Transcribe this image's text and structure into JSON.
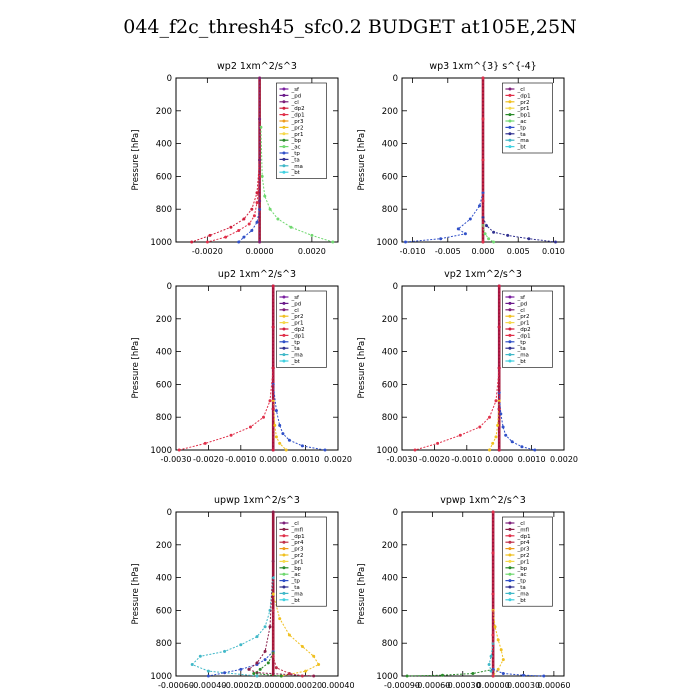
{
  "title": "044_f2c_thresh45_sfc0.2  BUDGET at105E,25N",
  "colors": {
    "sf": "#7a1fa0",
    "pd": "#6a1a8a",
    "cl": "#7d1f7a",
    "dp2": "#d01f3c",
    "dp1": "#e0304a",
    "pr3": "#ee9a1a",
    "pr2": "#f0c020",
    "pr1": "#f5d84a",
    "bp": "#2a8a2a",
    "bp1": "#2a8a2a",
    "ac": "#70d870",
    "tp": "#3050c8",
    "ta": "#303090",
    "ma": "#40b8c8",
    "bt": "#40d0e0",
    "mfl": "#8a1f4a",
    "pr4": "#c0304a"
  },
  "chart_data": [
    {
      "type": "line",
      "title": "wp2   1xm^2/s^3",
      "ylabel": "Pressure  [hPa]",
      "ylim": [
        1000,
        0
      ],
      "yticks": [
        "0",
        "200",
        "400",
        "600",
        "800",
        "1000"
      ],
      "xlim": [
        -0.0032,
        0.003
      ],
      "xticks": [
        {
          "v": -0.002,
          "label": "-0.0020"
        },
        {
          "v": 0,
          "label": "0.0000"
        },
        {
          "v": 0.002,
          "label": "0.0020"
        }
      ],
      "legend": [
        "_sf",
        "_pd",
        "_cl",
        "_dp2",
        "_dp1",
        "_pr3",
        "_pr2",
        "_pr1",
        "_bp",
        "_ac",
        "_tp",
        "_ta",
        "_ma",
        "_bt"
      ],
      "series": [
        {
          "name": "_ac",
          "x": [
            5e-05,
            0.0001,
            0.0002,
            0.0004,
            0.0007,
            0.0012,
            0.002,
            0.0028
          ],
          "y": [
            300,
            600,
            720,
            800,
            860,
            910,
            960,
            1000
          ]
        },
        {
          "name": "_dp2",
          "x": [
            0,
            -0.0001,
            -0.0003,
            -0.0006,
            -0.0011,
            -0.0019,
            -0.0026
          ],
          "y": [
            500,
            700,
            800,
            860,
            910,
            960,
            1000
          ]
        },
        {
          "name": "_dp1",
          "x": [
            0,
            -0.0001,
            -0.0002,
            -0.0004,
            -0.0008,
            -0.0013,
            -0.002
          ],
          "y": [
            600,
            760,
            840,
            890,
            930,
            970,
            1000
          ]
        },
        {
          "name": "_tp",
          "x": [
            0,
            -0.0001,
            -0.0003,
            -0.0006,
            -0.0008
          ],
          "y": [
            800,
            880,
            930,
            970,
            1000
          ]
        },
        {
          "name": "_pr3",
          "x": [
            0,
            0,
            0,
            0,
            0
          ],
          "y": [
            0,
            250,
            500,
            750,
            1000
          ]
        },
        {
          "name": "_cl",
          "x": [
            0,
            0,
            0,
            0,
            0
          ],
          "y": [
            0,
            250,
            500,
            750,
            1000
          ]
        }
      ]
    },
    {
      "type": "line",
      "title": "wp3   1xm^{3} s^{-4}",
      "ylabel": "Pressure  [hPa]",
      "ylim": [
        1000,
        0
      ],
      "yticks": [
        "0",
        "200",
        "400",
        "600",
        "800",
        "1000"
      ],
      "xlim": [
        -0.0115,
        0.0115
      ],
      "xticks": [
        {
          "v": -0.01,
          "label": "-0.010"
        },
        {
          "v": -0.005,
          "label": "-0.005"
        },
        {
          "v": 0,
          "label": "0.000"
        },
        {
          "v": 0.005,
          "label": "0.005"
        },
        {
          "v": 0.01,
          "label": "0.010"
        }
      ],
      "legend": [
        "_cl",
        "_dp1",
        "_pr2",
        "_pr1",
        "_bp1",
        "_ac",
        "_tp",
        "_ta",
        "_ma",
        "_bt"
      ],
      "series": [
        {
          "name": "_tp",
          "x": [
            0,
            -0.0005,
            -0.0018,
            -0.0035,
            -0.0025,
            -0.006,
            -0.011
          ],
          "y": [
            700,
            780,
            860,
            920,
            950,
            980,
            1000
          ]
        },
        {
          "name": "_ta",
          "x": [
            0,
            0.0005,
            0.0015,
            0.0035,
            0.0065,
            0.0103
          ],
          "y": [
            850,
            900,
            940,
            960,
            980,
            1000
          ]
        },
        {
          "name": "_ac",
          "x": [
            0,
            0.0003,
            0.0008,
            0.0015
          ],
          "y": [
            900,
            950,
            980,
            1000
          ]
        },
        {
          "name": "_pr2",
          "x": [
            0,
            0,
            0,
            0,
            0
          ],
          "y": [
            0,
            250,
            500,
            750,
            1000
          ]
        },
        {
          "name": "_cl",
          "x": [
            0,
            0,
            0,
            0,
            0
          ],
          "y": [
            0,
            250,
            500,
            750,
            1000
          ]
        },
        {
          "name": "_dp1",
          "x": [
            0,
            0,
            0,
            0,
            0
          ],
          "y": [
            0,
            250,
            500,
            750,
            1000
          ]
        }
      ]
    },
    {
      "type": "line",
      "title": "up2   1xm^2/s^3",
      "ylabel": "Pressure  [hPa]",
      "ylim": [
        1000,
        0
      ],
      "yticks": [
        "0",
        "200",
        "400",
        "600",
        "800",
        "1000"
      ],
      "xlim": [
        -0.003,
        0.002
      ],
      "xticks": [
        {
          "v": -0.003,
          "label": "-0.0030"
        },
        {
          "v": -0.002,
          "label": "-0.0020"
        },
        {
          "v": -0.001,
          "label": "-0.0010"
        },
        {
          "v": 0,
          "label": "0.0000"
        },
        {
          "v": 0.001,
          "label": "0.0010"
        },
        {
          "v": 0.002,
          "label": "0.0020"
        }
      ],
      "legend": [
        "_sf",
        "_pd",
        "_cl",
        "_pr2",
        "_pr1",
        "_dp2",
        "_dp1",
        "_tp",
        "_ta",
        "_ma",
        "_bt"
      ],
      "series": [
        {
          "name": "_dp1",
          "x": [
            0,
            -0.0001,
            -0.0003,
            -0.0007,
            -0.0013,
            -0.0021,
            -0.0029
          ],
          "y": [
            500,
            700,
            800,
            860,
            910,
            960,
            1000
          ]
        },
        {
          "name": "_tp",
          "x": [
            0,
            0.0001,
            0.0002,
            0.0003,
            0.0005,
            0.0009,
            0.0016
          ],
          "y": [
            600,
            760,
            850,
            900,
            940,
            975,
            1000
          ]
        },
        {
          "name": "_pr2",
          "x": [
            0,
            5e-05,
            0.0001,
            0.0002,
            0.0004
          ],
          "y": [
            700,
            850,
            920,
            960,
            1000
          ]
        },
        {
          "name": "_sf",
          "x": [
            0,
            0,
            0,
            0,
            0
          ],
          "y": [
            0,
            250,
            500,
            750,
            1000
          ]
        },
        {
          "name": "_cl",
          "x": [
            0,
            0,
            0,
            0,
            0
          ],
          "y": [
            0,
            250,
            500,
            750,
            1000
          ]
        },
        {
          "name": "_dp2",
          "x": [
            0,
            0,
            0,
            0,
            0
          ],
          "y": [
            0,
            250,
            500,
            750,
            1000
          ]
        }
      ]
    },
    {
      "type": "line",
      "title": "vp2   1xm^2/s^3",
      "ylabel": "Pressure  [hPa]",
      "ylim": [
        1000,
        0
      ],
      "yticks": [
        "0",
        "200",
        "400",
        "600",
        "800",
        "1000"
      ],
      "xlim": [
        -0.003,
        0.002
      ],
      "xticks": [
        {
          "v": -0.003,
          "label": "-0.0030"
        },
        {
          "v": -0.002,
          "label": "-0.0020"
        },
        {
          "v": -0.001,
          "label": "-0.0010"
        },
        {
          "v": 0,
          "label": "0.0000"
        },
        {
          "v": 0.001,
          "label": "0.0010"
        },
        {
          "v": 0.002,
          "label": "0.0020"
        }
      ],
      "legend": [
        "_sf",
        "_pd",
        "_cl",
        "_pr2",
        "_pr1",
        "_dp2",
        "_dp1",
        "_tp",
        "_ta",
        "_ma",
        "_bt"
      ],
      "series": [
        {
          "name": "_dp1",
          "x": [
            0,
            -0.0001,
            -0.0003,
            -0.0006,
            -0.0012,
            -0.0019,
            -0.0026
          ],
          "y": [
            500,
            700,
            800,
            860,
            910,
            960,
            1000
          ]
        },
        {
          "name": "_tp",
          "x": [
            0,
            5e-05,
            0.00012,
            0.0002,
            0.0004,
            0.0007,
            0.0011
          ],
          "y": [
            650,
            780,
            860,
            910,
            950,
            980,
            1000
          ]
        },
        {
          "name": "_pr2",
          "x": [
            0,
            -5e-05,
            -0.0001,
            -0.0002,
            -0.0003
          ],
          "y": [
            700,
            850,
            920,
            960,
            1000
          ]
        },
        {
          "name": "_sf",
          "x": [
            0,
            0,
            0,
            0,
            0
          ],
          "y": [
            0,
            250,
            500,
            750,
            1000
          ]
        },
        {
          "name": "_cl",
          "x": [
            0,
            0,
            0,
            0,
            0
          ],
          "y": [
            0,
            250,
            500,
            750,
            1000
          ]
        },
        {
          "name": "_dp2",
          "x": [
            0,
            0,
            0,
            0,
            0
          ],
          "y": [
            0,
            250,
            500,
            750,
            1000
          ]
        }
      ]
    },
    {
      "type": "line",
      "title": "upwp   1xm^2/s^3",
      "ylabel": "Pressure  [hPa]",
      "ylim": [
        1000,
        0
      ],
      "yticks": [
        "0",
        "200",
        "400",
        "600",
        "800",
        "1000"
      ],
      "xlim": [
        -0.0006,
        0.0004
      ],
      "xticks": [
        {
          "v": -0.0006,
          "label": "-0.00060"
        },
        {
          "v": -0.0004,
          "label": "-0.00040"
        },
        {
          "v": -0.0002,
          "label": "-0.00020"
        },
        {
          "v": 0,
          "label": "0.00000"
        },
        {
          "v": 0.0002,
          "label": "0.00020"
        },
        {
          "v": 0.0004,
          "label": "0.00040"
        }
      ],
      "legend": [
        "_cl",
        "_mfl",
        "_dp1",
        "_pr4",
        "_pr3",
        "_pr2",
        "_pr1",
        "_bp",
        "_ac",
        "_tp",
        "_ta",
        "_ma",
        "_bt"
      ],
      "series": [
        {
          "name": "_pr2",
          "x": [
            0,
            4e-05,
            0.0001,
            0.00018,
            0.00025,
            0.00028,
            0.0002,
            5e-05
          ],
          "y": [
            500,
            650,
            750,
            820,
            880,
            930,
            970,
            1000
          ]
        },
        {
          "name": "_ma",
          "x": [
            0,
            -2e-05,
            -5e-05,
            -0.0001,
            -0.0002,
            -0.0003,
            -0.00045,
            -0.0005,
            -0.0004,
            -0.0001
          ],
          "y": [
            400,
            600,
            700,
            760,
            810,
            850,
            880,
            930,
            970,
            1000
          ]
        },
        {
          "name": "_tp",
          "x": [
            0,
            -5e-05,
            -0.0001,
            -0.0002,
            -0.0003,
            -0.0004
          ],
          "y": [
            850,
            900,
            930,
            960,
            980,
            1000
          ]
        },
        {
          "name": "_mfl",
          "x": [
            0,
            0,
            -2e-05,
            -5e-05,
            -0.0001,
            -0.00015,
            -0.0001,
            0.00025
          ],
          "y": [
            0,
            300,
            700,
            850,
            920,
            960,
            980,
            1000
          ]
        },
        {
          "name": "_bp",
          "x": [
            0,
            -3e-05,
            -8e-05,
            -0.00012,
            5e-05
          ],
          "y": [
            860,
            920,
            960,
            985,
            1000
          ]
        },
        {
          "name": "_pr4",
          "x": [
            0,
            0,
            2e-05,
            0.0001,
            0.00018
          ],
          "y": [
            600,
            880,
            950,
            985,
            1000
          ]
        }
      ]
    },
    {
      "type": "line",
      "title": "vpwp   1xm^2/s^3",
      "ylabel": "Pressure  [hPa]",
      "ylim": [
        1000,
        0
      ],
      "yticks": [
        "0",
        "200",
        "400",
        "600",
        "800",
        "1000"
      ],
      "xlim": [
        -0.0009,
        0.0007
      ],
      "xticks": [
        {
          "v": -0.0009,
          "label": "-0.00090"
        },
        {
          "v": -0.0006,
          "label": "-0.00060"
        },
        {
          "v": -0.0003,
          "label": "-0.00030"
        },
        {
          "v": 0,
          "label": "0.00000"
        },
        {
          "v": 0.0003,
          "label": "0.00030"
        },
        {
          "v": 0.0006,
          "label": "0.00060"
        }
      ],
      "legend": [
        "_cl",
        "_mfl",
        "_dp1",
        "_pr4",
        "_pr3",
        "_pr2",
        "_pr1",
        "_bp",
        "_ac",
        "_tp",
        "_ta",
        "_ma",
        "_bt"
      ],
      "series": [
        {
          "name": "_pr2",
          "x": [
            0,
            2e-05,
            5e-05,
            8e-05,
            0.0001,
            5e-05,
            0
          ],
          "y": [
            600,
            700,
            780,
            840,
            900,
            960,
            1000
          ]
        },
        {
          "name": "_ma",
          "x": [
            0,
            -2e-05,
            -4e-05,
            -2e-05,
            0
          ],
          "y": [
            800,
            880,
            930,
            970,
            1000
          ]
        },
        {
          "name": "_bp",
          "x": [
            0,
            -0.0002,
            -0.0005,
            -0.00085
          ],
          "y": [
            960,
            985,
            995,
            1000
          ]
        },
        {
          "name": "_tp",
          "x": [
            0,
            0.0001,
            0.0003,
            0.0005
          ],
          "y": [
            960,
            985,
            995,
            1000
          ]
        },
        {
          "name": "_cl",
          "x": [
            0,
            0,
            0,
            0,
            0
          ],
          "y": [
            0,
            250,
            500,
            750,
            1000
          ]
        },
        {
          "name": "_dp1",
          "x": [
            0,
            0,
            0,
            0,
            0
          ],
          "y": [
            0,
            250,
            500,
            750,
            1000
          ]
        }
      ]
    }
  ]
}
